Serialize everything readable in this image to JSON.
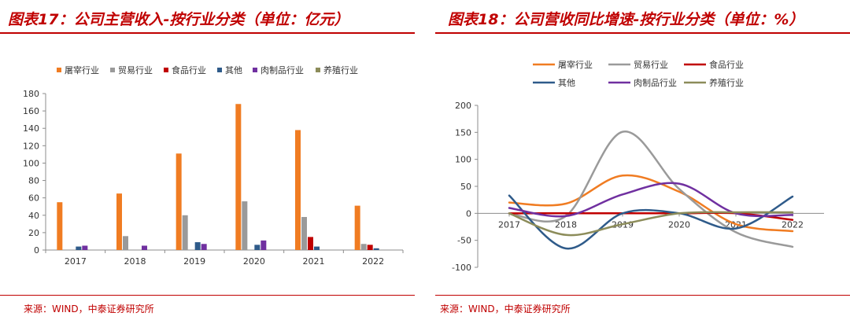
{
  "left_panel": {
    "title": "图表17：公司主营收入-按行业分类（单位：亿元）",
    "source": "来源：WIND，中泰证券研究所"
  },
  "right_panel": {
    "title": "图表18：公司营收同比增速-按行业分类（单位：%）",
    "source": "来源：WIND，中泰证券研究所"
  },
  "chart_data": [
    {
      "type": "bar",
      "title": "",
      "xlabel": "",
      "ylabel": "",
      "categories": [
        "2017",
        "2018",
        "2019",
        "2020",
        "2021",
        "2022"
      ],
      "ylim": [
        0,
        180
      ],
      "yticks": [
        0,
        20,
        40,
        60,
        80,
        100,
        120,
        140,
        160,
        180
      ],
      "grid": false,
      "legend_position": "top",
      "series": [
        {
          "name": "屠宰行业",
          "color": "#f07c22",
          "values": [
            55,
            65,
            111,
            168,
            138,
            51
          ]
        },
        {
          "name": "贸易行业",
          "color": "#9a9a9a",
          "values": [
            0,
            16,
            40,
            56,
            38,
            7
          ]
        },
        {
          "name": "食品行业",
          "color": "#c00000",
          "values": [
            0,
            0,
            0,
            0,
            15,
            6
          ]
        },
        {
          "name": "其他",
          "color": "#2f5b8a",
          "values": [
            4,
            0,
            9,
            6,
            4,
            2
          ]
        },
        {
          "name": "肉制品行业",
          "color": "#7030a0",
          "values": [
            5,
            5,
            7,
            11,
            0,
            0
          ]
        },
        {
          "name": "养殖行业",
          "color": "#8c8c5a",
          "values": [
            0,
            0,
            0,
            0,
            0,
            0
          ]
        }
      ]
    },
    {
      "type": "line",
      "title": "",
      "xlabel": "",
      "ylabel": "",
      "categories": [
        "2017",
        "2018",
        "2019",
        "2020",
        "2021",
        "2022"
      ],
      "ylim": [
        -100,
        200
      ],
      "yticks": [
        -100,
        -50,
        0,
        50,
        100,
        150,
        200
      ],
      "grid": false,
      "smooth": true,
      "legend_position": "top",
      "series": [
        {
          "name": "屠宰行业",
          "color": "#f07c22",
          "values": [
            20,
            18,
            70,
            40,
            -20,
            -33
          ]
        },
        {
          "name": "贸易行业",
          "color": "#9a9a9a",
          "values": [
            0,
            -5,
            151,
            45,
            -35,
            -62
          ]
        },
        {
          "name": "食品行业",
          "color": "#c00000",
          "values": [
            0,
            0,
            0,
            0,
            0,
            -12
          ]
        },
        {
          "name": "其他",
          "color": "#2f5b8a",
          "values": [
            33,
            -65,
            0,
            0,
            -28,
            31
          ]
        },
        {
          "name": "肉制品行业",
          "color": "#7030a0",
          "values": [
            10,
            -5,
            35,
            55,
            0,
            -3
          ]
        },
        {
          "name": "养殖行业",
          "color": "#8c8c5a",
          "values": [
            0,
            -40,
            -20,
            0,
            2,
            2
          ]
        }
      ]
    }
  ]
}
